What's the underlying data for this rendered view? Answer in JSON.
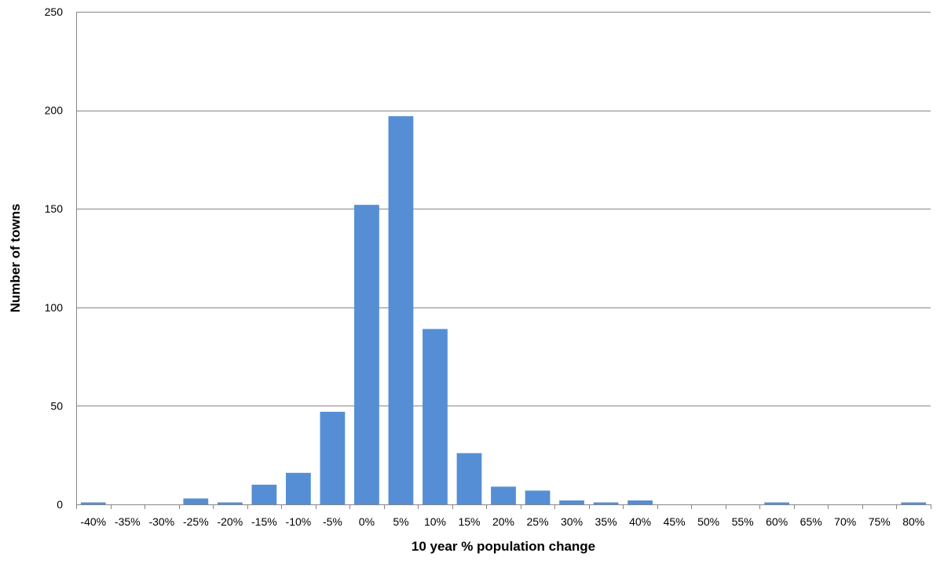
{
  "chart_data": {
    "type": "bar",
    "title": "",
    "xlabel": "10 year % population change",
    "ylabel": "Number of towns",
    "ylim": [
      0,
      250
    ],
    "yticks": [
      0,
      50,
      100,
      150,
      200,
      250
    ],
    "grid": true,
    "legend": "none",
    "bar_color": "#558ED5",
    "categories": [
      "-40%",
      "-35%",
      "-30%",
      "-25%",
      "-20%",
      "-15%",
      "-10%",
      "-5%",
      "0%",
      "5%",
      "10%",
      "15%",
      "20%",
      "25%",
      "30%",
      "35%",
      "40%",
      "45%",
      "50%",
      "55%",
      "60%",
      "65%",
      "70%",
      "75%",
      "80%"
    ],
    "values": [
      1,
      0,
      0,
      3,
      1,
      10,
      16,
      47,
      152,
      197,
      89,
      26,
      9,
      7,
      2,
      1,
      2,
      0,
      0,
      0,
      1,
      0,
      0,
      0,
      1
    ]
  }
}
